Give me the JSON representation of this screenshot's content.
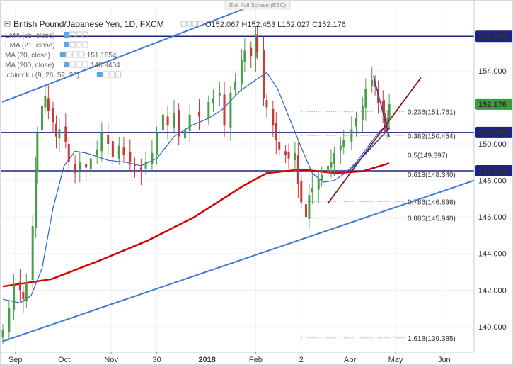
{
  "banner": {
    "label": "Exit Full Screen (ESC)"
  },
  "header": {
    "symbol": "British Pound/Japanese Yen, 1D, FXCM",
    "ohlc": {
      "o_label": "O",
      "o": "152.067",
      "h_label": "H",
      "h": "152.453",
      "l_label": "L",
      "l": "152.027",
      "c_label": "C",
      "c": "152.176"
    }
  },
  "indicators": [
    {
      "name": "EMA (55, close)",
      "value": "",
      "color": "#b0b0b0"
    },
    {
      "name": "EMA (21, close)",
      "value": "",
      "color": "#b0b0b0"
    },
    {
      "name": "MA (20, close)",
      "value": "151.1854",
      "color": "#2962c8"
    },
    {
      "name": "MA (200, close)",
      "value": "148.9404",
      "color": "#d40000"
    },
    {
      "name": "Ichimoku (9, 26, 52, 26)",
      "value": "",
      "color": "#b0b0b0"
    }
  ],
  "colors": {
    "up_candle": "#4a9e4a",
    "down_candle": "#c83a3a",
    "ma20": "#2962c8",
    "ma200": "#d40000",
    "channel": "#3a7bd5",
    "horizontal_level": "#1a237e",
    "trendline": "#8b1a1a",
    "wedge": "#2a3f9e",
    "price_badge": "#3d9a3d"
  },
  "chart_data": {
    "type": "candlestick",
    "title": "British Pound/Japanese Yen, 1D, FXCM",
    "y_axis_position": "right",
    "ylim": [
      138.6,
      157.6
    ],
    "x_range": [
      "2017-08-24",
      "2018-06-20"
    ],
    "grid": true,
    "x_ticks": [
      {
        "label": "Sep",
        "date": "2017-09-01"
      },
      {
        "label": "Oct",
        "date": "2017-10-02"
      },
      {
        "label": "Nov",
        "date": "2017-11-01"
      },
      {
        "label": "30",
        "date": "2017-11-30"
      },
      {
        "label": "2018",
        "date": "2018-01-01"
      },
      {
        "label": "Feb",
        "date": "2018-02-01"
      },
      {
        "label": "2",
        "date": "2018-03-02"
      },
      {
        "label": "Apr",
        "date": "2018-04-02"
      },
      {
        "label": "May",
        "date": "2018-05-01"
      },
      {
        "label": "Jun",
        "date": "2018-06-01"
      }
    ],
    "y_ticks": [
      "140.000",
      "142.000",
      "144.000",
      "146.000",
      "148.000",
      "150.000",
      "154.000"
    ],
    "price_labels": [
      {
        "text": "155.886",
        "value": 155.886,
        "color": "#1a237e"
      },
      {
        "text": "152.176",
        "value": 152.176,
        "color": "#3d9a3d"
      },
      {
        "text": "150.625",
        "value": 150.625,
        "color": "#1a237e"
      },
      {
        "text": "148.528",
        "value": 148.528,
        "color": "#1a237e"
      }
    ],
    "horizontal_levels": [
      155.886,
      150.625,
      148.528
    ],
    "fibonacci": [
      {
        "label": "0.236(151.761)",
        "value": 151.761,
        "color": "#222222"
      },
      {
        "label": "0.382(150.454)",
        "value": 150.454,
        "color": "#222222"
      },
      {
        "label": "0.5(149.397)",
        "value": 149.397,
        "color": "#4a7fd0"
      },
      {
        "label": "0.618(148.340)",
        "value": 148.34,
        "color": "#222222"
      },
      {
        "label": "0.786(146.836)",
        "value": 146.836,
        "color": "#222222"
      },
      {
        "label": "0.886(145.940)",
        "value": 145.94,
        "color": "#222222"
      },
      {
        "label": "1.618(139.385)",
        "value": 139.385,
        "color": "#4a7fd0"
      }
    ],
    "fib_start_date": "2018-03-02",
    "channel_upper": [
      {
        "date": "2017-08-24",
        "value": 152.3
      },
      {
        "date": "2018-01-31",
        "value": 157.6
      }
    ],
    "channel_lower": [
      {
        "date": "2017-08-24",
        "value": 139.2
      },
      {
        "date": "2018-06-20",
        "value": 148.0
      }
    ],
    "trendline": [
      {
        "date": "2018-03-19",
        "value": 146.75
      },
      {
        "date": "2018-05-17",
        "value": 153.6
      }
    ],
    "wedge_upper": [
      {
        "date": "2018-04-17",
        "value": 153.7
      },
      {
        "date": "2018-04-27",
        "value": 150.4
      }
    ],
    "wedge_lower": [
      {
        "date": "2018-04-02",
        "value": 148.55
      },
      {
        "date": "2018-04-27",
        "value": 150.85
      }
    ],
    "ma20": [
      [
        "2017-08-24",
        141.5
      ],
      [
        "2017-09-04",
        141.3
      ],
      [
        "2017-09-11",
        141.7
      ],
      [
        "2017-09-18",
        143.2
      ],
      [
        "2017-09-25",
        146.5
      ],
      [
        "2017-10-02",
        148.8
      ],
      [
        "2017-10-09",
        149.6
      ],
      [
        "2017-10-16",
        149.5
      ],
      [
        "2017-10-30",
        149.1
      ],
      [
        "2017-11-10",
        149.0
      ],
      [
        "2017-11-20",
        148.8
      ],
      [
        "2017-11-30",
        149.2
      ],
      [
        "2017-12-11",
        150.4
      ],
      [
        "2017-12-22",
        151.0
      ],
      [
        "2018-01-02",
        151.4
      ],
      [
        "2018-01-11",
        151.9
      ],
      [
        "2018-01-22",
        152.9
      ],
      [
        "2018-02-01",
        153.5
      ],
      [
        "2018-02-08",
        153.9
      ],
      [
        "2018-02-15",
        153.0
      ],
      [
        "2018-02-22",
        151.5
      ],
      [
        "2018-03-02",
        149.8
      ],
      [
        "2018-03-09",
        148.4
      ],
      [
        "2018-03-16",
        147.9
      ],
      [
        "2018-03-23",
        148.0
      ],
      [
        "2018-03-30",
        148.4
      ],
      [
        "2018-04-06",
        149.0
      ],
      [
        "2018-04-13",
        149.8
      ],
      [
        "2018-04-20",
        150.6
      ],
      [
        "2018-04-27",
        151.19
      ]
    ],
    "ma200": [
      [
        "2017-08-24",
        142.2
      ],
      [
        "2017-09-24",
        142.6
      ],
      [
        "2017-10-24",
        143.6
      ],
      [
        "2017-11-24",
        144.7
      ],
      [
        "2017-12-24",
        146.0
      ],
      [
        "2018-01-24",
        147.7
      ],
      [
        "2018-02-08",
        148.4
      ],
      [
        "2018-03-02",
        148.6
      ],
      [
        "2018-03-24",
        148.4
      ],
      [
        "2018-04-10",
        148.5
      ],
      [
        "2018-04-27",
        148.94
      ]
    ],
    "closes": [
      [
        "2017-08-24",
        139.8
      ],
      [
        "2017-08-28",
        141.0
      ],
      [
        "2017-08-31",
        142.3
      ],
      [
        "2017-09-04",
        142.0
      ],
      [
        "2017-09-06",
        141.5
      ],
      [
        "2017-09-08",
        142.4
      ],
      [
        "2017-09-12",
        145.5
      ],
      [
        "2017-09-14",
        148.6
      ],
      [
        "2017-09-15",
        150.6
      ],
      [
        "2017-09-18",
        152.1
      ],
      [
        "2017-09-20",
        152.6
      ],
      [
        "2017-09-22",
        151.8
      ],
      [
        "2017-09-25",
        151.2
      ],
      [
        "2017-09-27",
        150.4
      ],
      [
        "2017-09-29",
        150.8
      ],
      [
        "2017-10-03",
        150.1
      ],
      [
        "2017-10-05",
        149.0
      ],
      [
        "2017-10-09",
        148.4
      ],
      [
        "2017-10-12",
        149.0
      ],
      [
        "2017-10-16",
        148.7
      ],
      [
        "2017-10-19",
        149.2
      ],
      [
        "2017-10-23",
        149.7
      ],
      [
        "2017-10-26",
        150.6
      ],
      [
        "2017-10-30",
        150.0
      ],
      [
        "2017-11-02",
        149.3
      ],
      [
        "2017-11-06",
        149.9
      ],
      [
        "2017-11-09",
        149.4
      ],
      [
        "2017-11-13",
        149.0
      ],
      [
        "2017-11-16",
        148.8
      ],
      [
        "2017-11-20",
        148.5
      ],
      [
        "2017-11-23",
        149.0
      ],
      [
        "2017-11-27",
        149.5
      ],
      [
        "2017-11-30",
        150.6
      ],
      [
        "2017-12-04",
        151.6
      ],
      [
        "2017-12-07",
        151.0
      ],
      [
        "2017-12-11",
        151.7
      ],
      [
        "2017-12-14",
        150.4
      ],
      [
        "2017-12-18",
        150.8
      ],
      [
        "2017-12-21",
        151.6
      ],
      [
        "2017-12-27",
        151.5
      ],
      [
        "2018-01-02",
        152.3
      ],
      [
        "2018-01-05",
        152.5
      ],
      [
        "2018-01-09",
        152.8
      ],
      [
        "2018-01-12",
        151.0
      ],
      [
        "2018-01-16",
        152.8
      ],
      [
        "2018-01-19",
        153.4
      ],
      [
        "2018-01-23",
        154.6
      ],
      [
        "2018-01-25",
        155.1
      ],
      [
        "2018-01-29",
        154.8
      ],
      [
        "2018-02-01",
        156.0
      ],
      [
        "2018-02-02",
        155.0
      ],
      [
        "2018-02-06",
        152.5
      ],
      [
        "2018-02-08",
        152.0
      ],
      [
        "2018-02-12",
        151.0
      ],
      [
        "2018-02-14",
        150.2
      ],
      [
        "2018-02-16",
        149.7
      ],
      [
        "2018-02-20",
        149.4
      ],
      [
        "2018-02-22",
        149.2
      ],
      [
        "2018-02-26",
        149.5
      ],
      [
        "2018-02-28",
        147.8
      ],
      [
        "2018-03-02",
        146.8
      ],
      [
        "2018-03-05",
        146.0
      ],
      [
        "2018-03-07",
        147.2
      ],
      [
        "2018-03-09",
        147.6
      ],
      [
        "2018-03-13",
        148.1
      ],
      [
        "2018-03-15",
        148.3
      ],
      [
        "2018-03-19",
        148.8
      ],
      [
        "2018-03-21",
        149.0
      ],
      [
        "2018-03-23",
        149.5
      ],
      [
        "2018-03-27",
        149.9
      ],
      [
        "2018-03-29",
        150.2
      ],
      [
        "2018-04-03",
        150.8
      ],
      [
        "2018-04-06",
        151.4
      ],
      [
        "2018-04-10",
        152.1
      ],
      [
        "2018-04-12",
        153.0
      ],
      [
        "2018-04-16",
        153.5
      ],
      [
        "2018-04-18",
        153.1
      ],
      [
        "2018-04-20",
        152.2
      ],
      [
        "2018-04-23",
        151.8
      ],
      [
        "2018-04-24",
        151.3
      ],
      [
        "2018-04-25",
        150.6
      ],
      [
        "2018-04-26",
        151.4
      ],
      [
        "2018-04-27",
        152.176
      ]
    ]
  }
}
